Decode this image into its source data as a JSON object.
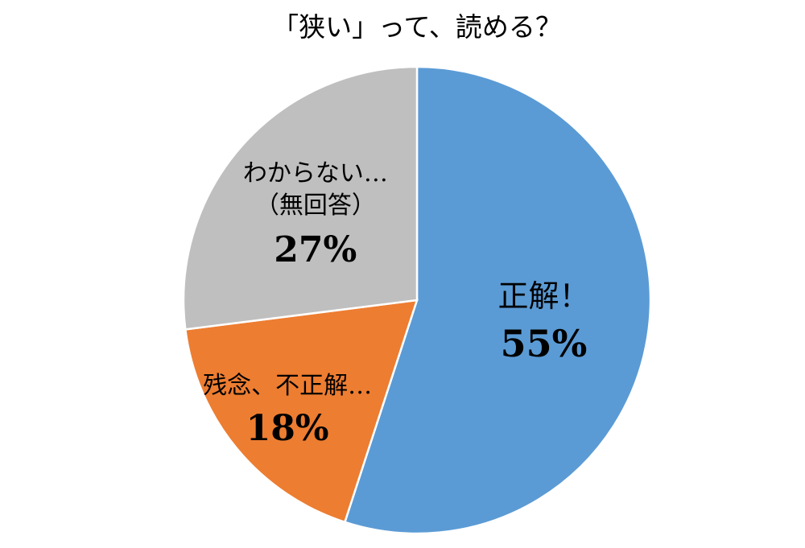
{
  "chart_data": {
    "type": "pie",
    "title": "「狭い」って、読める？",
    "start_angle_deg": 0,
    "direction": "clockwise",
    "slices": [
      {
        "label_lines": [
          "正解！"
        ],
        "percent_label": "55%",
        "value": 55,
        "color": "#5b9bd5"
      },
      {
        "label_lines": [
          "残念、不正解…"
        ],
        "percent_label": "18%",
        "value": 18,
        "color": "#ed7d31"
      },
      {
        "label_lines": [
          "わからない…",
          "（無回答）"
        ],
        "percent_label": "27%",
        "value": 27,
        "color": "#bfbfbf"
      }
    ],
    "slice_border_color": "#ffffff",
    "legend": "none"
  }
}
